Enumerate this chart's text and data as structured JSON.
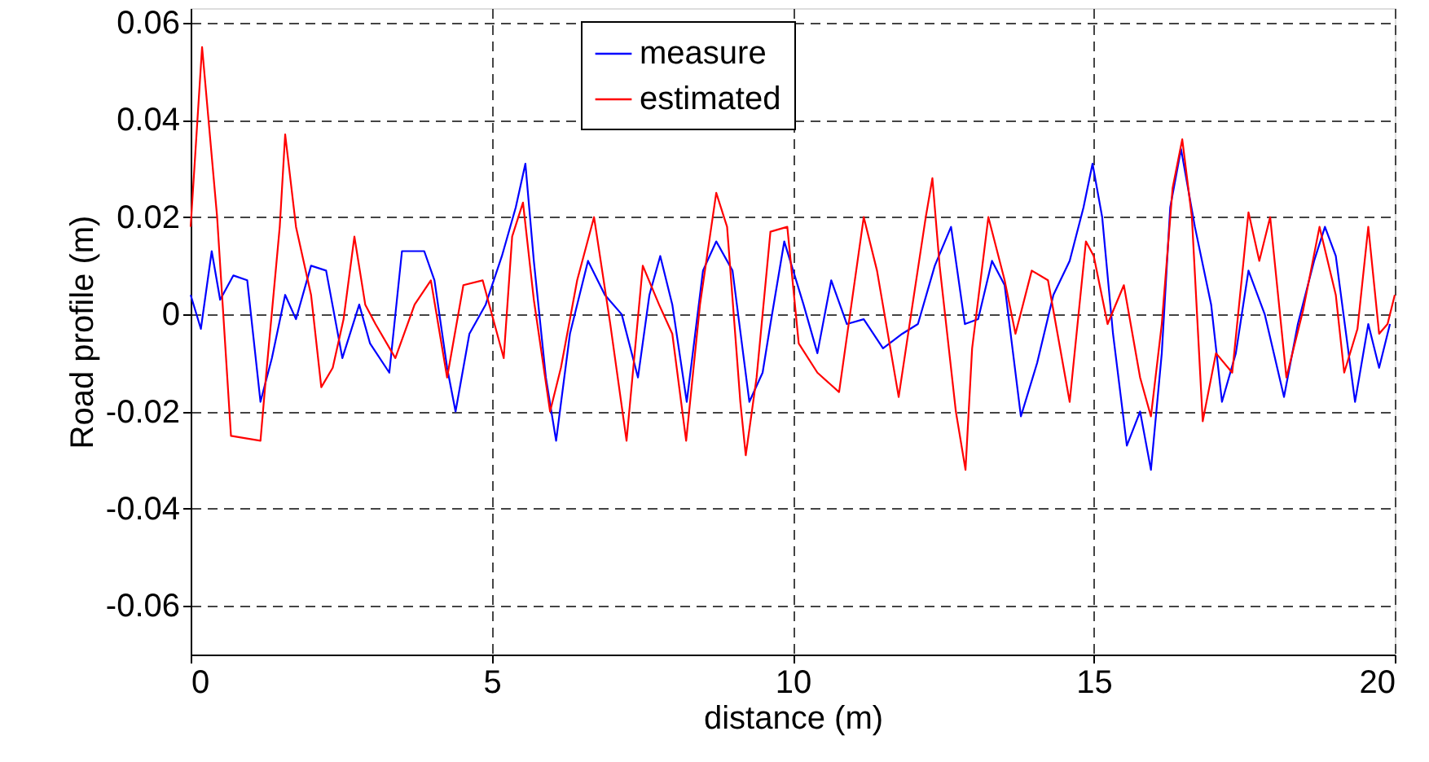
{
  "chart_data": {
    "type": "line",
    "xlabel": "distance (m)",
    "ylabel": "Road profile (m)",
    "xlim": [
      0,
      20
    ],
    "xticks": [
      0,
      5,
      10,
      15,
      20
    ],
    "ylim": [
      -0.07,
      0.063
    ],
    "yticks": [
      -0.06,
      -0.04,
      -0.02,
      0,
      0.02,
      0.04,
      0.06
    ],
    "grid": true,
    "legend": "top",
    "series": [
      {
        "name": "measure",
        "color": "#0000ff",
        "x": [
          0,
          0.17,
          0.35,
          0.49,
          0.71,
          0.94,
          1.16,
          1.35,
          1.57,
          1.75,
          2.0,
          2.25,
          2.52,
          2.8,
          2.98,
          3.3,
          3.51,
          3.88,
          4.05,
          4.26,
          4.4,
          4.63,
          4.9,
          5.17,
          5.4,
          5.56,
          5.7,
          5.9,
          6.07,
          6.3,
          6.6,
          6.88,
          7.16,
          7.43,
          7.62,
          7.8,
          8.0,
          8.24,
          8.51,
          8.73,
          9.0,
          9.28,
          9.5,
          9.63,
          9.86,
          10.18,
          10.41,
          10.64,
          10.9,
          11.18,
          11.5,
          11.82,
          12.08,
          12.36,
          12.63,
          12.86,
          13.08,
          13.31,
          13.52,
          13.79,
          14.06,
          14.33,
          14.6,
          14.83,
          14.98,
          15.14,
          15.32,
          15.55,
          15.77,
          15.95,
          16.13,
          16.27,
          16.45,
          16.68,
          16.95,
          17.13,
          17.36,
          17.57,
          17.84,
          18.16,
          18.39,
          18.66,
          18.84,
          19.02,
          19.34,
          19.56,
          19.74,
          19.92
        ],
        "values": [
          0.004,
          -0.003,
          0.013,
          0.003,
          0.008,
          0.007,
          -0.018,
          -0.009,
          0.004,
          -0.001,
          0.01,
          0.009,
          -0.009,
          0.002,
          -0.006,
          -0.012,
          0.013,
          0.013,
          0.007,
          -0.011,
          -0.02,
          -0.004,
          0.002,
          0.012,
          0.022,
          0.031,
          0.011,
          -0.013,
          -0.026,
          -0.004,
          0.011,
          0.004,
          0,
          -0.013,
          0.004,
          0.012,
          0.002,
          -0.018,
          0.009,
          0.015,
          0.009,
          -0.018,
          -0.012,
          -0.002,
          0.015,
          0.002,
          -0.008,
          0.007,
          -0.002,
          -0.001,
          -0.007,
          -0.004,
          -0.002,
          0.01,
          0.018,
          -0.002,
          -0.001,
          0.011,
          0.006,
          -0.021,
          -0.01,
          0.004,
          0.011,
          0.022,
          0.031,
          0.02,
          -0.004,
          -0.027,
          -0.02,
          -0.032,
          -0.008,
          0.022,
          0.034,
          0.018,
          0.002,
          -0.018,
          -0.008,
          0.009,
          0,
          -0.017,
          -0.002,
          0.011,
          0.018,
          0.012,
          -0.018,
          -0.002,
          -0.011,
          -0.002
        ]
      },
      {
        "name": "estimated",
        "color": "#ff0000",
        "x": [
          0,
          0.19,
          0.44,
          0.67,
          1.16,
          1.25,
          1.48,
          1.57,
          1.75,
          2.0,
          2.17,
          2.36,
          2.54,
          2.72,
          2.9,
          3.07,
          3.4,
          3.72,
          3.99,
          4.26,
          4.53,
          4.85,
          5.2,
          5.34,
          5.52,
          5.7,
          5.97,
          6.15,
          6.42,
          6.7,
          6.97,
          7.24,
          7.51,
          7.78,
          8.0,
          8.23,
          8.46,
          8.73,
          8.91,
          9.13,
          9.22,
          9.4,
          9.63,
          9.91,
          10.1,
          10.41,
          10.77,
          11.18,
          11.4,
          11.76,
          11.99,
          12.21,
          12.32,
          12.44,
          12.71,
          12.87,
          12.98,
          13.25,
          13.52,
          13.7,
          13.97,
          14.24,
          14.6,
          14.87,
          15.0,
          15.23,
          15.5,
          15.77,
          15.95,
          16.13,
          16.31,
          16.47,
          16.63,
          16.81,
          17.03,
          17.3,
          17.57,
          17.75,
          17.93,
          18.2,
          18.48,
          18.75,
          19.02,
          19.16,
          19.38,
          19.56,
          19.74,
          19.88,
          20.0
        ],
        "values": [
          0.018,
          0.055,
          0.02,
          -0.025,
          -0.026,
          -0.013,
          0.018,
          0.037,
          0.018,
          0.004,
          -0.015,
          -0.011,
          -0.001,
          0.016,
          0.002,
          -0.002,
          -0.009,
          0.002,
          0.007,
          -0.013,
          0.006,
          0.007,
          -0.009,
          0.016,
          0.023,
          0.003,
          -0.02,
          -0.011,
          0.007,
          0.02,
          -0.002,
          -0.026,
          0.01,
          0.002,
          -0.004,
          -0.026,
          0.002,
          0.025,
          0.018,
          -0.018,
          -0.029,
          -0.013,
          0.017,
          0.018,
          -0.006,
          -0.012,
          -0.016,
          0.02,
          0.009,
          -0.017,
          0.002,
          0.02,
          0.028,
          0.01,
          -0.02,
          -0.032,
          -0.007,
          0.02,
          0.007,
          -0.004,
          0.009,
          0.007,
          -0.018,
          0.015,
          0.012,
          -0.002,
          0.006,
          -0.013,
          -0.021,
          -0.002,
          0.026,
          0.036,
          0.02,
          -0.022,
          -0.008,
          -0.012,
          0.021,
          0.011,
          0.02,
          -0.013,
          0.001,
          0.018,
          0.004,
          -0.012,
          -0.003,
          0.018,
          -0.004,
          -0.002,
          0.004
        ]
      }
    ]
  }
}
